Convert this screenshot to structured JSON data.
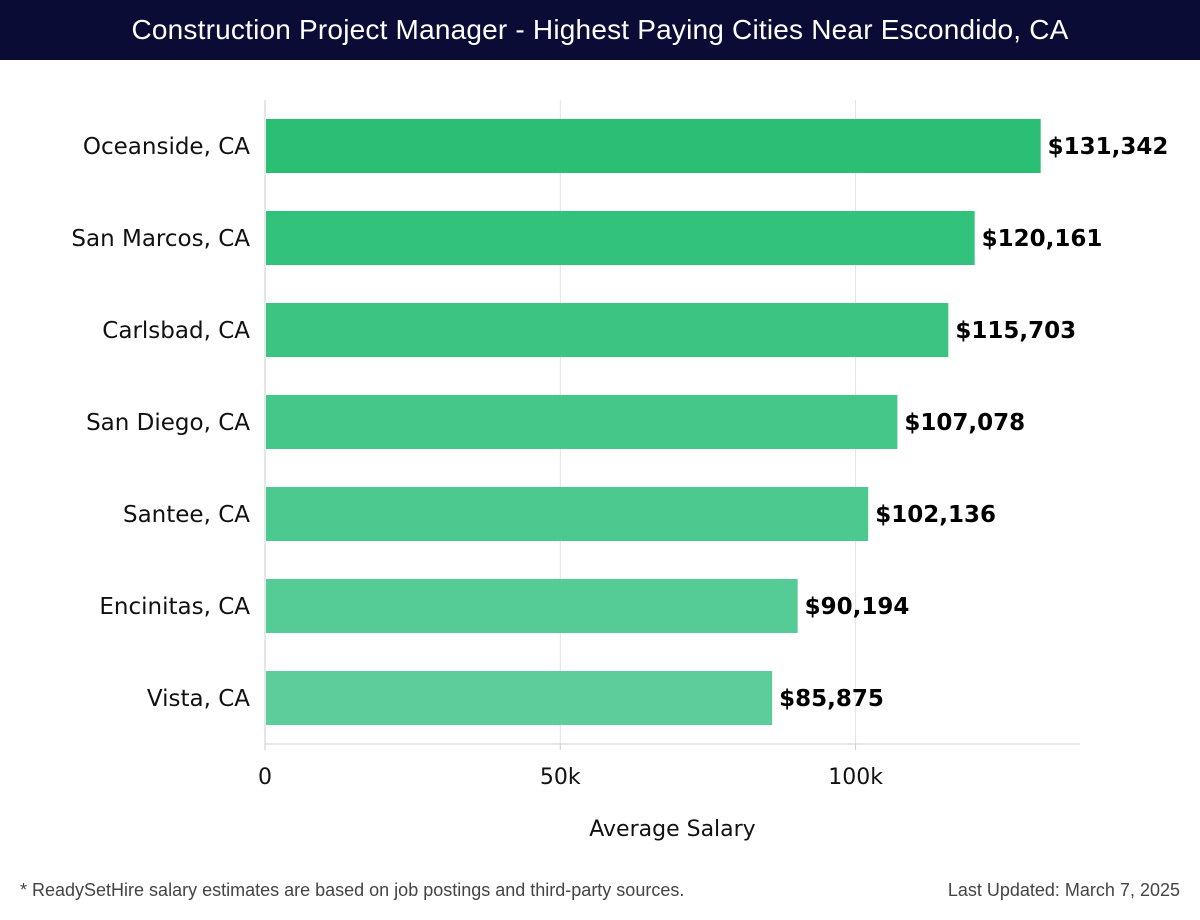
{
  "header": {
    "title": "Construction Project Manager - Highest Paying Cities Near Escondido, CA"
  },
  "chart_data": {
    "type": "bar",
    "orientation": "horizontal",
    "categories": [
      "Oceanside, CA",
      "San Marcos, CA",
      "Carlsbad, CA",
      "San Diego, CA",
      "Santee, CA",
      "Encinitas, CA",
      "Vista, CA"
    ],
    "values": [
      131342,
      120161,
      115703,
      107078,
      102136,
      90194,
      85875
    ],
    "value_labels": [
      "$131,342",
      "$120,161",
      "$115,703",
      "$107,078",
      "$102,136",
      "$90,194",
      "$85,875"
    ],
    "xlabel": "Average Salary",
    "ylabel": "",
    "xlim": [
      0,
      138000
    ],
    "xticks": [
      0,
      50000,
      100000
    ],
    "xtick_labels": [
      "0",
      "50k",
      "100k"
    ],
    "grid": "vertical",
    "colors": {
      "bar_top": "#2bbf76",
      "bar_bottom": "#5dce9b",
      "grid": "#e2e2e2",
      "axis": "#cccccc"
    }
  },
  "footer": {
    "note": "* ReadySetHire salary estimates are based on job postings and third-party sources.",
    "updated": "Last Updated: March 7, 2025"
  }
}
